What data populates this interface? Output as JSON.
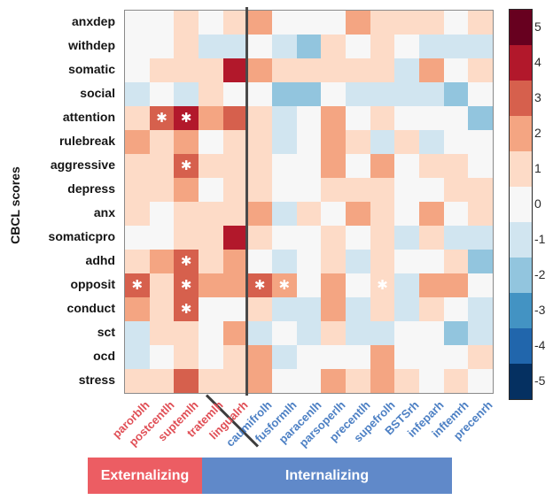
{
  "figure": {
    "ylabel": "CBCL scores",
    "group_bars": [
      {
        "label": "Externalizing",
        "color": "#ec5d63"
      },
      {
        "label": "Internalizing",
        "color": "#6089c9"
      }
    ],
    "label_colors": {
      "externalizing": "#e04f56",
      "internalizing": "#4d80c4"
    }
  },
  "chart_data": {
    "type": "heatmap",
    "title": "",
    "xlabel": "",
    "ylabel": "CBCL scores",
    "rows": [
      "anxdep",
      "withdep",
      "somatic",
      "social",
      "attention",
      "rulebreak",
      "aggressive",
      "depress",
      "anx",
      "somaticpro",
      "adhd",
      "opposit",
      "conduct",
      "sct",
      "ocd",
      "stress"
    ],
    "columns": [
      "parorblh",
      "postcentlh",
      "suptemlh",
      "tratemlh",
      "lingualrh",
      "caumifrolh",
      "fusformlh",
      "paracenlh",
      "parsoperlh",
      "precentlh",
      "supefrolh",
      "BSTSrh",
      "infeparh",
      "inftemrh",
      "precenrh"
    ],
    "column_groups": [
      {
        "label": "Externalizing",
        "n_columns": 5
      },
      {
        "label": "Internalizing",
        "n_columns": 10
      }
    ],
    "values": [
      [
        0,
        0,
        1,
        0,
        1,
        2,
        0,
        0,
        0,
        2,
        1,
        1,
        1,
        0,
        1
      ],
      [
        0,
        0,
        1,
        -1,
        -1,
        0,
        -1,
        -2,
        1,
        0,
        1,
        0,
        -1,
        -1,
        -1
      ],
      [
        0,
        1,
        1,
        1,
        4,
        2,
        1,
        1,
        1,
        1,
        1,
        -1,
        2,
        0,
        1
      ],
      [
        -1,
        0,
        -1,
        1,
        0,
        0,
        -2,
        -2,
        0,
        -1,
        -1,
        -1,
        -1,
        -2,
        0
      ],
      [
        1,
        3,
        4,
        2,
        3,
        1,
        -1,
        0,
        2,
        0,
        1,
        0,
        0,
        0,
        -2
      ],
      [
        2,
        1,
        2,
        0,
        1,
        1,
        -1,
        0,
        2,
        1,
        -1,
        1,
        -1,
        0,
        0
      ],
      [
        1,
        1,
        3,
        1,
        1,
        1,
        0,
        0,
        2,
        0,
        2,
        0,
        1,
        1,
        0
      ],
      [
        1,
        1,
        2,
        0,
        1,
        1,
        0,
        0,
        1,
        1,
        1,
        0,
        0,
        1,
        1
      ],
      [
        1,
        0,
        1,
        1,
        1,
        2,
        -1,
        1,
        0,
        2,
        1,
        0,
        2,
        0,
        1
      ],
      [
        0,
        0,
        1,
        1,
        4,
        1,
        0,
        0,
        1,
        0,
        1,
        -1,
        1,
        -1,
        -1
      ],
      [
        1,
        2,
        3,
        1,
        2,
        0,
        -1,
        0,
        1,
        -1,
        1,
        0,
        0,
        1,
        -2
      ],
      [
        3,
        1,
        3,
        2,
        2,
        3,
        2,
        0,
        2,
        0,
        1,
        -1,
        2,
        2,
        0
      ],
      [
        2,
        1,
        3,
        0,
        0,
        1,
        -1,
        -1,
        2,
        -1,
        1,
        -1,
        1,
        0,
        -1
      ],
      [
        -1,
        1,
        1,
        0,
        2,
        -1,
        0,
        -1,
        1,
        -1,
        -1,
        0,
        0,
        -2,
        -1
      ],
      [
        -1,
        0,
        1,
        0,
        1,
        2,
        -1,
        0,
        0,
        0,
        2,
        0,
        0,
        0,
        1
      ],
      [
        1,
        1,
        3,
        1,
        1,
        2,
        0,
        0,
        2,
        1,
        2,
        1,
        0,
        1,
        0
      ]
    ],
    "significance_stars": [
      [
        4,
        1
      ],
      [
        4,
        2
      ],
      [
        6,
        2
      ],
      [
        10,
        2
      ],
      [
        11,
        0
      ],
      [
        11,
        2
      ],
      [
        11,
        5
      ],
      [
        11,
        6
      ],
      [
        11,
        10
      ],
      [
        12,
        2
      ]
    ],
    "star_glyph": "✱",
    "colormap": {
      "5": "#67001f",
      "4": "#b2182b",
      "3": "#d6604d",
      "2": "#f4a582",
      "1": "#fddbc7",
      "0": "#f7f7f7",
      "-1": "#d1e5f0",
      "-2": "#92c5de",
      "-3": "#4393c3",
      "-4": "#2166ac",
      "-5": "#053061"
    },
    "colorbar_ticks": [
      5,
      4,
      3,
      2,
      1,
      0,
      -1,
      -2,
      -3,
      -4,
      -5
    ],
    "value_range": [
      -5,
      5
    ],
    "grid": false,
    "legend_position": "right-colorbar"
  }
}
